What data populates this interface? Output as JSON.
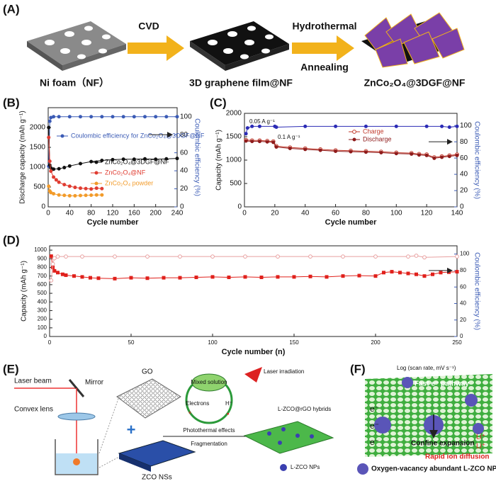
{
  "panel_a": {
    "label": "(A)",
    "steps": [
      "Ni foam（NF）",
      "3D graphene film@NF",
      "ZnCo₂O₄@3DGF@NF"
    ],
    "arrows": [
      "CVD",
      "Hydrothermal",
      "Annealing"
    ]
  },
  "chart_data": [
    {
      "type": "line",
      "label": "(B)",
      "xlabel": "Cycle number",
      "ylabel": "Discharge capacity (mAh g⁻¹)",
      "y2label": "Coulombic efficiency (%)",
      "xlim": [
        0,
        240
      ],
      "xticks": [
        0,
        40,
        80,
        120,
        160,
        200,
        240
      ],
      "ylim": [
        0,
        2500
      ],
      "yticks": [
        0,
        500,
        1000,
        1500,
        2000
      ],
      "y2lim": [
        0,
        110
      ],
      "y2ticks": [
        0,
        20,
        40,
        60,
        80,
        100
      ],
      "series": [
        {
          "name": "Coulombic efficiency for ZnCo₂O₄@3DGF@NF",
          "color": "#3b5bb5",
          "marker": "circle",
          "axis": "y2",
          "x": [
            1,
            3,
            5,
            10,
            20,
            40,
            60,
            80,
            100,
            120,
            140,
            160,
            180,
            200,
            220,
            240
          ],
          "values": [
            45,
            95,
            99,
            100,
            100,
            100,
            100,
            100,
            100,
            100,
            100,
            100,
            100,
            100,
            100,
            100
          ]
        },
        {
          "name": "ZnCo₂O₄@3DGF@NF",
          "color": "#111111",
          "marker": "circle",
          "x": [
            1,
            3,
            5,
            10,
            20,
            30,
            40,
            60,
            80,
            100,
            120,
            140,
            160,
            180,
            200,
            220,
            240
          ],
          "values": [
            2000,
            1050,
            980,
            950,
            960,
            990,
            1030,
            1090,
            1140,
            1170,
            1190,
            1200,
            1200,
            1210,
            1200,
            1210,
            1220
          ]
        },
        {
          "name": "ZnCo₂O₄@NF",
          "color": "#e03c31",
          "marker": "circle",
          "x": [
            1,
            3,
            5,
            10,
            15,
            20,
            30,
            40,
            50,
            60,
            70,
            80,
            90,
            100
          ],
          "values": [
            1750,
            1150,
            900,
            750,
            680,
            620,
            560,
            520,
            490,
            470,
            460,
            450,
            470,
            460
          ]
        },
        {
          "name": "ZnCo₂O₄ powder",
          "color": "#f29b2a",
          "marker": "circle",
          "x": [
            1,
            3,
            5,
            10,
            20,
            30,
            40,
            50,
            60,
            70,
            80,
            90,
            100
          ],
          "values": [
            520,
            400,
            360,
            330,
            300,
            290,
            280,
            280,
            285,
            290,
            295,
            300,
            300
          ]
        }
      ]
    },
    {
      "type": "line",
      "label": "(C)",
      "xlabel": "Cycle number",
      "ylabel": "Capacity (mAh g⁻¹)",
      "y2label": "Coulombic efficiency (%)",
      "xlim": [
        0,
        140
      ],
      "xticks": [
        0,
        20,
        40,
        60,
        80,
        100,
        120,
        140
      ],
      "ylim": [
        0,
        2000
      ],
      "yticks": [
        0,
        500,
        1000,
        1500,
        2000
      ],
      "y2lim": [
        0,
        115
      ],
      "y2ticks": [
        0,
        20,
        40,
        60,
        80,
        100
      ],
      "annotations": [
        "0.05 A g⁻¹",
        "0.1 A g⁻¹"
      ],
      "series": [
        {
          "name": "Charge",
          "color": "#c0392b",
          "marker": "open-circle",
          "x": [
            1,
            5,
            10,
            15,
            19,
            21,
            30,
            40,
            50,
            60,
            70,
            80,
            90,
            100,
            110,
            115,
            120,
            125,
            130,
            135,
            140
          ],
          "values": [
            1430,
            1420,
            1420,
            1410,
            1400,
            1300,
            1270,
            1250,
            1230,
            1210,
            1200,
            1190,
            1180,
            1160,
            1150,
            1130,
            1120,
            1060,
            1080,
            1100,
            1120
          ]
        },
        {
          "name": "Discharge",
          "color": "#8e1b1b",
          "marker": "circle",
          "x": [
            1,
            5,
            10,
            15,
            19,
            21,
            30,
            40,
            50,
            60,
            70,
            80,
            90,
            100,
            110,
            115,
            120,
            125,
            130,
            135,
            140
          ],
          "values": [
            1410,
            1400,
            1400,
            1390,
            1380,
            1280,
            1250,
            1230,
            1210,
            1190,
            1180,
            1170,
            1160,
            1140,
            1130,
            1110,
            1100,
            1040,
            1060,
            1080,
            1100
          ]
        },
        {
          "color": "#2b2bb5",
          "marker": "circle",
          "axis": "y2",
          "x": [
            1,
            2,
            5,
            10,
            20,
            21,
            40,
            60,
            80,
            100,
            120,
            130,
            135,
            140
          ],
          "values": [
            90,
            97,
            99,
            99,
            99,
            98,
            99,
            99,
            99,
            99,
            99,
            99,
            98,
            99
          ]
        }
      ]
    },
    {
      "type": "line",
      "label": "(D)",
      "xlabel": "Cycle number (n)",
      "ylabel": "Capacity (mAh g⁻¹)",
      "y2label": "Coulombic efficiency (%)",
      "xlim": [
        0,
        250
      ],
      "xticks": [
        0,
        50,
        100,
        150,
        200,
        250
      ],
      "ylim": [
        0,
        1050
      ],
      "yticks": [
        0,
        100,
        200,
        300,
        400,
        500,
        600,
        700,
        800,
        900,
        1000
      ],
      "y2lim": [
        0,
        110
      ],
      "y2ticks": [
        0,
        20,
        40,
        60,
        80,
        100
      ],
      "series": [
        {
          "color": "#e0201b",
          "marker": "square",
          "x": [
            1,
            2,
            3,
            5,
            8,
            10,
            15,
            20,
            25,
            30,
            40,
            50,
            60,
            70,
            80,
            90,
            100,
            110,
            120,
            130,
            140,
            150,
            160,
            170,
            180,
            190,
            200,
            205,
            210,
            215,
            220,
            225,
            230,
            235,
            240,
            245,
            250
          ],
          "values": [
            930,
            800,
            760,
            740,
            720,
            710,
            700,
            690,
            680,
            675,
            670,
            680,
            675,
            680,
            680,
            685,
            690,
            685,
            690,
            685,
            690,
            690,
            695,
            690,
            700,
            705,
            700,
            740,
            750,
            740,
            730,
            720,
            700,
            720,
            740,
            745,
            750
          ]
        },
        {
          "color": "#e8a0a0",
          "marker": "open-circle",
          "axis": "y2",
          "x": [
            1,
            2,
            3,
            5,
            10,
            20,
            40,
            60,
            80,
            100,
            120,
            140,
            160,
            180,
            200,
            220,
            225,
            230,
            250
          ],
          "values": [
            68,
            88,
            95,
            97,
            97,
            97,
            97,
            97,
            97,
            97,
            97,
            97,
            97,
            97,
            97,
            97,
            98,
            96,
            97
          ]
        }
      ]
    }
  ],
  "panel_e": {
    "label": "(E)",
    "laser": "Laser beam",
    "mirror": "Mirror",
    "lens": "Convex lens",
    "go": "GO",
    "solution": "Mixed solution",
    "irradiation": "Laser irradiation",
    "electrons": "Electrons",
    "proton": "H⁺",
    "effects": "Photothermal effects",
    "fragmentation": "Fragmentation",
    "hybrids": "L-ZCO@rGO hybrids",
    "nps": "L-ZCO NPs",
    "nss": "ZCO NSs"
  },
  "panel_f": {
    "label": "(F)",
    "scan": "Log (scan rate, mV s⁻¹)",
    "pathway": "Fast e⁻ pathway",
    "electrons": [
      "e⁻",
      "e⁻",
      "e⁻"
    ],
    "expansion": "Confine expansion",
    "ions": [
      "Li⁺",
      "Li⁺"
    ],
    "diffusion": "Rapid ion diffusion",
    "legend": "Oxygen-vacancy abundant L-ZCO NPs"
  }
}
